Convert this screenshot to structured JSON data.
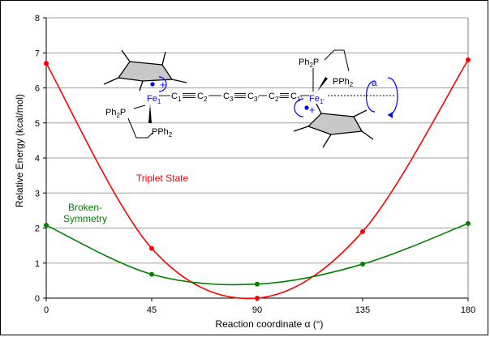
{
  "chart_data": {
    "type": "line",
    "xlabel": "Reaction coordinate α (°)",
    "ylabel": "Relative Energy (kcal/mol)",
    "xlim": [
      0,
      180
    ],
    "ylim": [
      0,
      8
    ],
    "x_ticks": [
      0,
      45,
      90,
      135,
      180
    ],
    "y_ticks": [
      0,
      1,
      2,
      3,
      4,
      5,
      6,
      7,
      8
    ],
    "grid": "horizontal",
    "series": [
      {
        "name": "Triplet State",
        "color": "#ff0000",
        "x": [
          0,
          45,
          90,
          135,
          180
        ],
        "y": [
          6.7,
          1.42,
          0.0,
          1.9,
          6.8
        ]
      },
      {
        "name": "Broken-Symmetry",
        "color": "#008000",
        "x": [
          0,
          45,
          90,
          135,
          180
        ],
        "y": [
          2.08,
          0.68,
          0.4,
          0.97,
          2.13
        ]
      }
    ],
    "annotations": {
      "triplet_label": "Triplet State",
      "bs_label_line1": "Broken-",
      "bs_label_line2": "Symmetry"
    }
  },
  "molecule": {
    "fe": "Fe",
    "fe1": "1",
    "fe1p": "1'",
    "c": "C",
    "ph2p": "Ph",
    "p": "P",
    "pph2": "PPh",
    "two": "2",
    "alpha": "a",
    "plus": "+",
    "c_subs": [
      "1",
      "2",
      "3",
      "3'",
      "2'",
      "1'"
    ]
  }
}
